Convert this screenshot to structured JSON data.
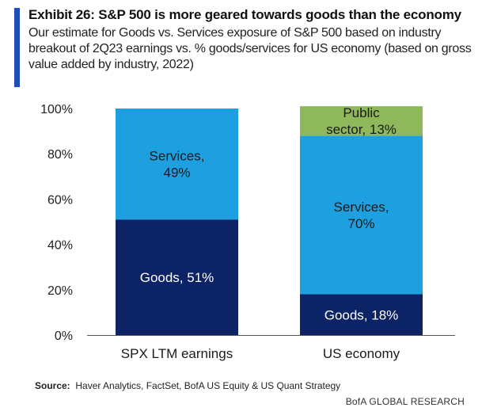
{
  "header": {
    "title": "Exhibit 26: S&P 500 is more geared towards goods than the economy",
    "subtitle": "Our estimate for Goods vs. Services exposure of S&P 500 based on industry breakout of 2Q23 earnings vs. % goods/services for US economy (based on gross value added by industry, 2022)"
  },
  "chart_data": {
    "type": "bar",
    "stacked": true,
    "categories": [
      "SPX LTM earnings",
      "US economy"
    ],
    "series": [
      {
        "key": "goods",
        "values": [
          51,
          18
        ],
        "color": "#0c2366",
        "labels": [
          "Goods, 51%",
          "Goods, 18%"
        ]
      },
      {
        "key": "services",
        "values": [
          49,
          70
        ],
        "color": "#1e9fe0",
        "labels": [
          "Services,\n49%",
          "Services,\n70%"
        ]
      },
      {
        "key": "public",
        "values": [
          0,
          13
        ],
        "color": "#8fb85a",
        "labels": [
          "",
          "Public\nsector, 13%"
        ]
      }
    ],
    "yticks": [
      "0%",
      "20%",
      "40%",
      "60%",
      "80%",
      "100%"
    ],
    "ylim": [
      0,
      100
    ],
    "grid": false,
    "legend": "none"
  },
  "footer": {
    "source_label": "Source:",
    "source_text": "Haver Analytics, FactSet, BofA US Equity & US Quant Strategy",
    "brand": "BofA GLOBAL RESEARCH"
  }
}
